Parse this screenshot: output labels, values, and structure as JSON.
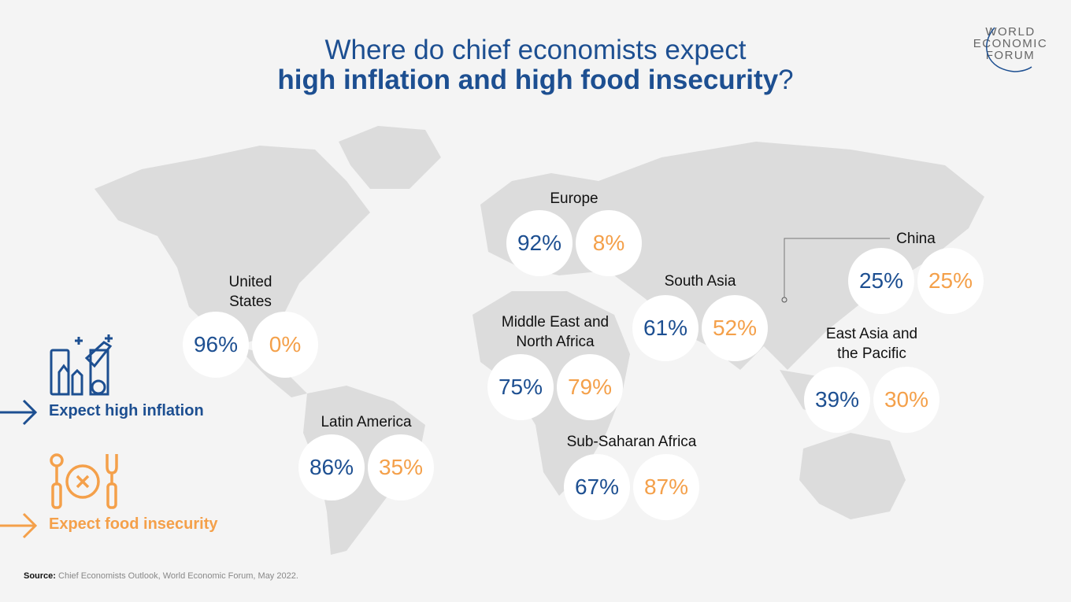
{
  "title": {
    "line1": "Where do chief economists expect",
    "line2_bold": "high inflation and high food insecurity",
    "line2_end": "?"
  },
  "logo": {
    "line1": "WORLD",
    "line2": "ECONOMIC",
    "line3": "FORUM"
  },
  "colors": {
    "inflation": "#1d4f91",
    "food_insecurity": "#f4a04a",
    "map": "#dcdcdc",
    "background": "#f4f4f4"
  },
  "legend": {
    "inflation_label": "Expect high inflation",
    "inflation_icon": "groceries-price-tag-icon",
    "food_label": "Expect food insecurity",
    "food_icon": "plate-cutlery-cross-icon"
  },
  "regions": [
    {
      "name": "United States",
      "name_l1": "United",
      "name_l2": "States",
      "inflation": "96%",
      "food": "0%"
    },
    {
      "name": "Europe",
      "name_l1": "Europe",
      "name_l2": "",
      "inflation": "92%",
      "food": "8%"
    },
    {
      "name": "Middle East and North Africa",
      "name_l1": "Middle East and",
      "name_l2": "North Africa",
      "inflation": "75%",
      "food": "79%"
    },
    {
      "name": "Latin America",
      "name_l1": "Latin America",
      "name_l2": "",
      "inflation": "86%",
      "food": "35%"
    },
    {
      "name": "South Asia",
      "name_l1": "South Asia",
      "name_l2": "",
      "inflation": "61%",
      "food": "52%"
    },
    {
      "name": "Sub-Saharan Africa",
      "name_l1": "Sub-Saharan Africa",
      "name_l2": "",
      "inflation": "67%",
      "food": "87%"
    },
    {
      "name": "China",
      "name_l1": "China",
      "name_l2": "",
      "inflation": "25%",
      "food": "25%"
    },
    {
      "name": "East Asia and the Pacific",
      "name_l1": "East Asia and",
      "name_l2": "the Pacific",
      "inflation": "39%",
      "food": "30%"
    }
  ],
  "source": {
    "label": "Source:",
    "text": "Chief Economists Outlook, World Economic Forum, May 2022."
  }
}
